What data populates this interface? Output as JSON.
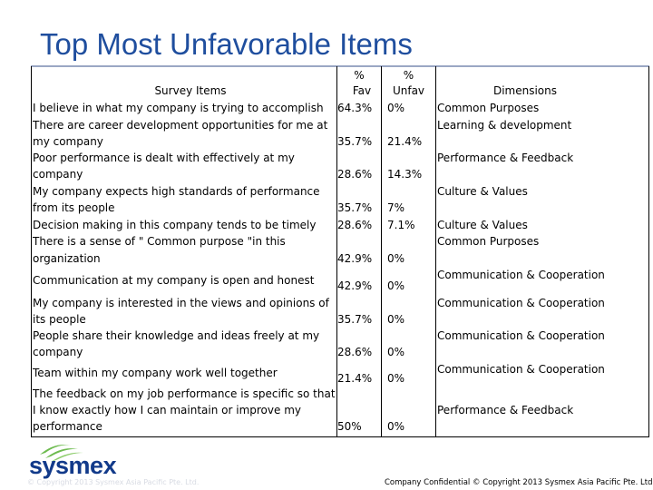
{
  "title": "Top Most Unfavorable Items",
  "headers": {
    "survey_items": "Survey Items",
    "fav_pct": "%",
    "fav": "Fav",
    "unfav_pct": "%",
    "unfav": "Unfav",
    "dimensions": "Dimensions"
  },
  "rows": [
    {
      "item": [
        "I believe in what my company is trying to accomplish"
      ],
      "fav": "64.3%",
      "unfav": "0%",
      "dim": [
        "Common Purposes"
      ]
    },
    {
      "item": [
        "There are career development opportunities for me at",
        "my company"
      ],
      "fav": "35.7%",
      "unfav": "21.4%",
      "dim": [
        "Learning & development"
      ]
    },
    {
      "item": [
        "Poor performance is dealt with effectively at my",
        "company"
      ],
      "fav": "28.6%",
      "unfav": "14.3%",
      "dim": [
        "Performance & Feedback"
      ]
    },
    {
      "item": [
        "My company expects high standards of performance",
        "from its people"
      ],
      "fav": "35.7%",
      "unfav": "7%",
      "dim": [
        "Culture & Values"
      ]
    },
    {
      "item": [
        "Decision making in this company tends to be timely"
      ],
      "fav": "28.6%",
      "unfav": "7.1%",
      "dim": [
        "Culture & Values"
      ]
    },
    {
      "item": [
        "There is a sense of \" Common purpose \"in this",
        "organization"
      ],
      "fav": "42.9%",
      "unfav": "0%",
      "dim": [
        "Common Purposes"
      ]
    },
    {
      "item": [
        "Communication at my company is open and honest"
      ],
      "fav": "42.9%",
      "unfav": "0%",
      "dim": [
        "Communication & Cooperation"
      ]
    },
    {
      "item": [
        "My company is interested in the views and opinions of",
        "its people"
      ],
      "fav": "35.7%",
      "unfav": "0%",
      "dim": [
        "Communication & Cooperation"
      ]
    },
    {
      "item": [
        "People share their knowledge and ideas freely at my",
        "company"
      ],
      "fav": "28.6%",
      "unfav": "0%",
      "dim": [
        "Communication & Cooperation"
      ]
    },
    {
      "item": [
        "Team within my company work well together"
      ],
      "fav": "21.4%",
      "unfav": "0%",
      "dim": [
        "Communication & Cooperation"
      ]
    },
    {
      "item": [
        "The feedback on my job performance is specific so that",
        "I know exactly how I can maintain or improve my",
        "performance"
      ],
      "fav": "50%",
      "unfav": "0%",
      "dim": [
        "Performance & Feedback"
      ]
    }
  ],
  "logo_text": "sysmex",
  "footer": "Company Confidential © Copyright 2013 Sysmex Asia Pacific Pte. Ltd.",
  "faint_footer": "© Copyright 2013 Sysmex Asia Pacific Pte. Ltd.",
  "colors": {
    "title": "#1f4e9e",
    "logo_green": "#6dbb4f",
    "logo_blue": "#123a8a"
  }
}
